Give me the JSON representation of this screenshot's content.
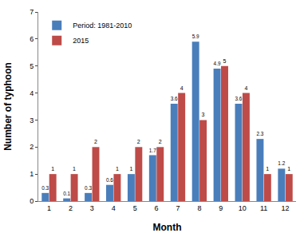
{
  "chart_data": {
    "type": "bar",
    "x_label": "Month",
    "y_label": "Number of typhoon",
    "categories": [
      "1",
      "2",
      "3",
      "4",
      "5",
      "6",
      "7",
      "8",
      "9",
      "10",
      "11",
      "12"
    ],
    "series": [
      {
        "name": "Period: 1981-2010",
        "color": "#4a7ebb",
        "values": [
          0.3,
          0.1,
          0.3,
          0.6,
          1,
          1.7,
          3.6,
          5.9,
          4.9,
          3.6,
          2.3,
          1.2
        ]
      },
      {
        "name": "2015",
        "color": "#be4b48",
        "values": [
          1,
          1,
          2,
          1,
          2,
          2,
          4,
          3,
          5,
          4,
          1,
          1
        ]
      }
    ],
    "ylim": [
      0,
      7
    ],
    "yticks": [
      0,
      1,
      2,
      3,
      4,
      5,
      6,
      7
    ],
    "grid": false,
    "legend": "upper left",
    "data_labels": true
  }
}
